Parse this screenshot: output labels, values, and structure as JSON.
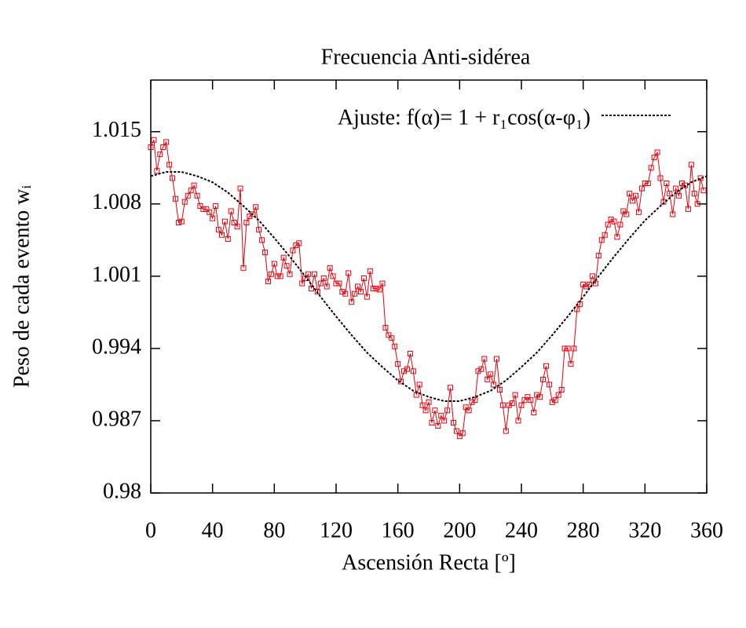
{
  "chart_data": {
    "type": "line",
    "title": "Frecuencia Anti-sidérea",
    "xlabel": "Ascensión Recta [º]",
    "ylabel": "Peso de cada evento wᵢ",
    "xlim": [
      0,
      360
    ],
    "xticks": [
      0,
      40,
      80,
      120,
      160,
      200,
      240,
      280,
      320,
      360
    ],
    "ylim": [
      0.98,
      1.02
    ],
    "yticks": [
      0.98,
      0.987,
      0.994,
      1.001,
      1.008,
      1.015
    ],
    "grid": false,
    "legend": "top-right",
    "series": [
      {
        "name": null,
        "color": "#e8000b",
        "marker": "square",
        "dash": false,
        "x": [
          0,
          2,
          4,
          6,
          8,
          10,
          12,
          14,
          16,
          18,
          20,
          22,
          24,
          26,
          28,
          30,
          32,
          34,
          36,
          38,
          40,
          42,
          44,
          46,
          48,
          50,
          52,
          54,
          56,
          58,
          60,
          62,
          64,
          66,
          68,
          70,
          72,
          74,
          76,
          78,
          80,
          82,
          84,
          86,
          88,
          90,
          92,
          94,
          96,
          98,
          100,
          102,
          104,
          106,
          108,
          110,
          112,
          114,
          116,
          118,
          120,
          122,
          124,
          126,
          128,
          130,
          132,
          134,
          136,
          138,
          140,
          142,
          144,
          146,
          148,
          150,
          152,
          154,
          156,
          158,
          160,
          162,
          164,
          166,
          168,
          170,
          172,
          174,
          176,
          178,
          180,
          182,
          184,
          186,
          188,
          190,
          192,
          194,
          196,
          198,
          200,
          202,
          204,
          206,
          208,
          210,
          212,
          214,
          216,
          218,
          220,
          222,
          224,
          226,
          228,
          230,
          232,
          234,
          236,
          238,
          240,
          242,
          244,
          246,
          248,
          250,
          252,
          254,
          256,
          258,
          260,
          262,
          264,
          266,
          268,
          270,
          272,
          274,
          276,
          278,
          280,
          282,
          284,
          286,
          288,
          290,
          292,
          294,
          296,
          298,
          300,
          302,
          304,
          306,
          308,
          310,
          312,
          314,
          316,
          318,
          320,
          322,
          324,
          326,
          328,
          330,
          332,
          334,
          336,
          338,
          340,
          342,
          344,
          346,
          348,
          350,
          352,
          354,
          356,
          358
        ],
        "values": [
          1.0135,
          1.0142,
          1.0112,
          1.0128,
          1.0135,
          1.014,
          1.0118,
          1.0105,
          1.0085,
          1.0062,
          1.0063,
          1.0082,
          1.0088,
          1.0093,
          1.0098,
          1.0088,
          1.0078,
          1.0075,
          1.0075,
          1.0072,
          1.0066,
          1.0078,
          1.0055,
          1.005,
          1.0063,
          1.0046,
          1.0073,
          1.0062,
          1.0058,
          1.0095,
          1.0018,
          1.0062,
          1.0068,
          1.007,
          1.0077,
          1.0055,
          1.0045,
          1.0033,
          1.0005,
          1.0012,
          1.0022,
          1.001,
          1.001,
          1.0028,
          1.002,
          1.0012,
          1.0035,
          1.004,
          1.0042,
          1.0003,
          1.0008,
          1.0012,
          0.9998,
          1.0012,
          0.9995,
          1.0003,
          1.0008,
          1.0,
          1.0018,
          1.001,
          1.0003,
          1.0003,
          0.9995,
          0.9993,
          1.0013,
          0.9985,
          0.9993,
          1.0,
          0.9995,
          1.0008,
          0.999,
          1.0015,
          0.9998,
          0.9998,
          0.9997,
          1.0003,
          0.996,
          0.9953,
          0.995,
          0.9942,
          0.9925,
          0.9908,
          0.9918,
          0.992,
          0.9935,
          0.9918,
          0.9895,
          0.9905,
          0.9885,
          0.988,
          0.9888,
          0.9868,
          0.988,
          0.9865,
          0.9875,
          0.987,
          0.988,
          0.9902,
          0.9868,
          0.986,
          0.9855,
          0.9858,
          0.9883,
          0.988,
          0.9888,
          0.989,
          0.9918,
          0.992,
          0.993,
          0.991,
          0.9915,
          0.9905,
          0.993,
          0.99,
          0.9885,
          0.986,
          0.9885,
          0.9887,
          0.9895,
          0.987,
          0.9885,
          0.989,
          0.9893,
          0.989,
          0.9878,
          0.9895,
          0.9893,
          0.991,
          0.9923,
          0.9905,
          0.9888,
          0.989,
          0.9895,
          0.99,
          0.994,
          0.994,
          0.9925,
          0.994,
          0.9978,
          0.9983,
          1.0002,
          1.0,
          1.0002,
          1.001,
          1.0003,
          1.003,
          1.0045,
          1.005,
          1.006,
          1.0065,
          1.0063,
          1.0048,
          1.006,
          1.0073,
          1.007,
          1.009,
          1.0083,
          1.0088,
          1.0072,
          1.0095,
          1.01,
          1.01,
          1.0115,
          1.0125,
          1.013,
          1.0105,
          1.0082,
          1.01,
          1.009,
          1.007,
          1.0095,
          1.0088,
          1.01,
          1.0098,
          1.0075,
          1.0118,
          1.009,
          1.008,
          1.0105,
          1.0093
        ]
      },
      {
        "name": "Ajuste: f(α)= 1 + r₁cos(α-φ₁)",
        "color": "#000000",
        "marker": null,
        "dash": true,
        "x": [
          0,
          10,
          20,
          30,
          40,
          50,
          60,
          70,
          80,
          90,
          100,
          110,
          120,
          130,
          140,
          150,
          160,
          170,
          180,
          190,
          200,
          210,
          220,
          230,
          240,
          250,
          260,
          270,
          280,
          290,
          300,
          310,
          320,
          330,
          340,
          350,
          360
        ],
        "values": [
          1.0107,
          1.0111,
          1.0111,
          1.0107,
          1.0101,
          1.0091,
          1.0078,
          1.0064,
          1.0047,
          1.0029,
          1.001,
          0.999,
          0.9971,
          0.9953,
          0.9936,
          0.9922,
          0.9909,
          0.9899,
          0.9893,
          0.9889,
          0.9889,
          0.9893,
          0.9899,
          0.9909,
          0.9922,
          0.9936,
          0.9953,
          0.9971,
          0.999,
          1.001,
          1.0029,
          1.0047,
          1.0064,
          1.0078,
          1.0091,
          1.0101,
          1.0107
        ]
      }
    ]
  }
}
